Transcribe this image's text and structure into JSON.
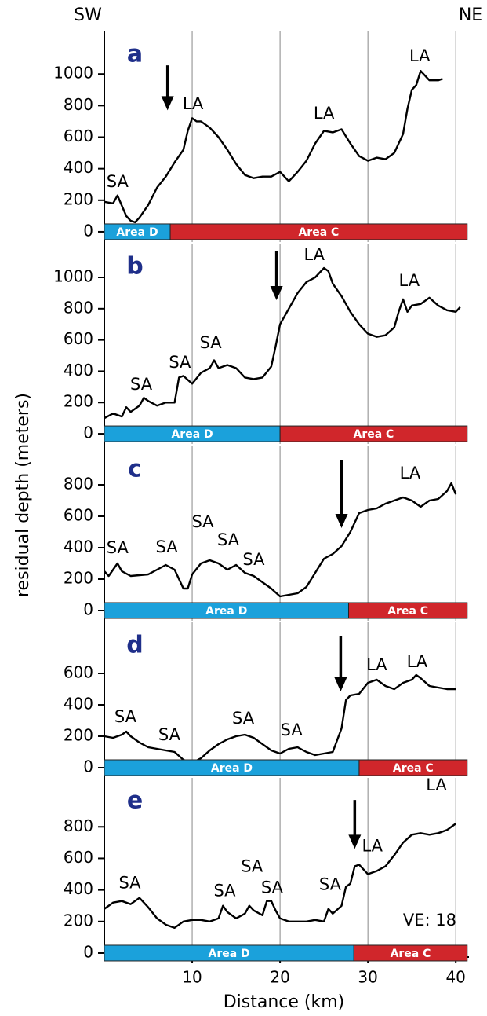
{
  "corner_labels": {
    "left": "SW",
    "right": "NE"
  },
  "ylabel": "residual depth (meters)",
  "x_axis": {
    "label": "Distance (km)",
    "xlim": [
      0,
      41.5
    ],
    "xticks": [
      10,
      20,
      30,
      40
    ]
  },
  "chart_data": [
    {
      "type": "line",
      "title": "a",
      "color": "#000000",
      "ylim": [
        -65,
        1270
      ],
      "yticks": [
        0,
        200,
        400,
        600,
        800,
        1000
      ],
      "x": [
        0,
        1,
        1.5,
        2.5,
        3,
        3.5,
        4,
        5,
        6,
        7,
        8,
        9,
        9.5,
        10,
        10.5,
        11,
        12,
        13,
        14,
        15,
        16,
        17,
        18,
        19,
        20,
        21,
        22,
        23,
        24,
        25,
        26,
        27,
        28,
        29,
        30,
        31,
        32,
        33,
        34,
        34.5,
        35,
        35.5,
        36,
        36.5,
        37,
        38,
        38.5
      ],
      "values": [
        190,
        180,
        230,
        100,
        70,
        60,
        90,
        170,
        280,
        350,
        440,
        520,
        640,
        720,
        700,
        700,
        660,
        600,
        520,
        430,
        360,
        340,
        350,
        350,
        380,
        320,
        380,
        450,
        560,
        640,
        630,
        650,
        560,
        480,
        450,
        470,
        460,
        500,
        620,
        780,
        900,
        930,
        1020,
        990,
        960,
        960,
        970
      ],
      "annotations": [
        {
          "text": "SA",
          "x": 1.5,
          "y": 313
        },
        {
          "text": "LA",
          "x": 10.1,
          "y": 806
        },
        {
          "text": "LA",
          "x": 25,
          "y": 746
        },
        {
          "text": "LA",
          "x": 35.9,
          "y": 1110
        }
      ],
      "arrow": {
        "x": 7.2,
        "y_from": 1055,
        "y_to": 770
      },
      "regions": [
        {
          "label": "Area D",
          "range": [
            0,
            7.5
          ],
          "color": "#1ba1db"
        },
        {
          "label": "Area C",
          "range": [
            7.5,
            41.3
          ],
          "color": "#d0262b"
        }
      ]
    },
    {
      "type": "line",
      "title": "b",
      "color": "#000000",
      "ylim": [
        -65,
        1216
      ],
      "yticks": [
        0,
        200,
        400,
        600,
        800,
        1000
      ],
      "x": [
        0,
        1,
        2,
        2.5,
        3,
        4,
        4.5,
        5,
        6,
        7,
        8,
        8.5,
        9,
        10,
        11,
        12,
        12.5,
        13,
        14,
        15,
        16,
        17,
        18,
        19,
        19.5,
        20,
        21,
        22,
        23,
        24,
        25,
        25.5,
        26,
        27,
        28,
        29,
        30,
        31,
        32,
        33,
        33.5,
        34,
        34.5,
        35,
        36,
        37,
        38,
        39,
        40,
        40.5
      ],
      "values": [
        100,
        130,
        110,
        170,
        140,
        180,
        230,
        210,
        180,
        200,
        200,
        360,
        370,
        320,
        390,
        420,
        470,
        420,
        440,
        420,
        360,
        350,
        360,
        430,
        560,
        700,
        800,
        900,
        970,
        1000,
        1060,
        1040,
        960,
        880,
        780,
        700,
        640,
        620,
        630,
        680,
        780,
        860,
        780,
        820,
        830,
        870,
        820,
        790,
        780,
        810
      ],
      "annotations": [
        {
          "text": "SA",
          "x": 4.2,
          "y": 311
        },
        {
          "text": "SA",
          "x": 8.6,
          "y": 452
        },
        {
          "text": "SA",
          "x": 12.1,
          "y": 578
        },
        {
          "text": "LA",
          "x": 23.9,
          "y": 1140
        },
        {
          "text": "LA",
          "x": 34.7,
          "y": 975
        }
      ],
      "arrow": {
        "x": 19.6,
        "y_from": 1166,
        "y_to": 854
      },
      "regions": [
        {
          "label": "Area D",
          "range": [
            0,
            20
          ],
          "color": "#1ba1db"
        },
        {
          "label": "Area C",
          "range": [
            20,
            41.3
          ],
          "color": "#d0262b"
        }
      ]
    },
    {
      "type": "line",
      "title": "c",
      "color": "#000000",
      "ylim": [
        -65,
        1045
      ],
      "yticks": [
        0,
        200,
        400,
        600,
        800
      ],
      "x": [
        0,
        0.5,
        1,
        1.5,
        2,
        3,
        5,
        6,
        7,
        8,
        9,
        9.5,
        10,
        11,
        12,
        13,
        14,
        15,
        16,
        17,
        18,
        19,
        20,
        21,
        22,
        23,
        24,
        25,
        26,
        27,
        28,
        29,
        30,
        31,
        32,
        33,
        34,
        35,
        36,
        37,
        38,
        39,
        39.5,
        40
      ],
      "values": [
        250,
        220,
        260,
        300,
        250,
        220,
        230,
        260,
        290,
        260,
        140,
        140,
        230,
        300,
        320,
        300,
        260,
        290,
        240,
        220,
        180,
        140,
        90,
        100,
        110,
        150,
        240,
        330,
        360,
        410,
        500,
        620,
        640,
        650,
        680,
        700,
        720,
        700,
        660,
        700,
        710,
        760,
        810,
        740
      ],
      "annotations": [
        {
          "text": "SA",
          "x": 1.5,
          "y": 395
        },
        {
          "text": "SA",
          "x": 7.1,
          "y": 400
        },
        {
          "text": "SA",
          "x": 11.2,
          "y": 560
        },
        {
          "text": "SA",
          "x": 14.1,
          "y": 445
        },
        {
          "text": "SA",
          "x": 17,
          "y": 320
        },
        {
          "text": "LA",
          "x": 34.8,
          "y": 870
        }
      ],
      "arrow": {
        "x": 27,
        "y_from": 960,
        "y_to": 525
      },
      "regions": [
        {
          "label": "Area D",
          "range": [
            0,
            27.8
          ],
          "color": "#1ba1db"
        },
        {
          "label": "Area C",
          "range": [
            27.8,
            41.3
          ],
          "color": "#d0262b"
        }
      ]
    },
    {
      "type": "line",
      "title": "d",
      "color": "#000000",
      "ylim": [
        -55,
        925
      ],
      "yticks": [
        0,
        200,
        400,
        600
      ],
      "x": [
        0,
        1,
        2,
        2.5,
        3,
        4,
        5,
        6,
        7,
        8,
        9,
        10,
        11,
        12,
        13,
        14,
        15,
        16,
        17,
        18,
        19,
        20,
        21,
        22,
        23,
        24,
        25,
        26,
        27,
        27.5,
        28,
        29,
        30,
        31,
        32,
        33,
        34,
        35,
        35.5,
        36,
        37,
        38,
        39,
        40
      ],
      "values": [
        200,
        190,
        210,
        230,
        200,
        160,
        130,
        120,
        110,
        100,
        50,
        30,
        60,
        110,
        150,
        180,
        200,
        210,
        190,
        150,
        110,
        90,
        120,
        130,
        100,
        80,
        90,
        100,
        250,
        430,
        460,
        470,
        540,
        560,
        520,
        500,
        540,
        560,
        590,
        570,
        520,
        510,
        500,
        500
      ],
      "annotations": [
        {
          "text": "SA",
          "x": 2.4,
          "y": 320
        },
        {
          "text": "SA",
          "x": 7.4,
          "y": 205
        },
        {
          "text": "SA",
          "x": 15.8,
          "y": 310
        },
        {
          "text": "SA",
          "x": 21.3,
          "y": 235
        },
        {
          "text": "LA",
          "x": 31,
          "y": 650
        },
        {
          "text": "LA",
          "x": 35.6,
          "y": 670
        }
      ],
      "arrow": {
        "x": 26.9,
        "y_from": 835,
        "y_to": 485
      },
      "regions": [
        {
          "label": "Area D",
          "range": [
            0,
            29
          ],
          "color": "#1ba1db"
        },
        {
          "label": "Area C",
          "range": [
            29,
            41.3
          ],
          "color": "#d0262b"
        }
      ]
    },
    {
      "type": "line",
      "title": "e",
      "color": "#000000",
      "ylim": [
        -25,
        1110
      ],
      "yticks": [
        0,
        200,
        400,
        600,
        800
      ],
      "note": "VE: 18",
      "x": [
        0,
        0.5,
        1,
        2,
        3,
        4,
        5,
        6,
        7,
        8,
        9,
        10,
        11,
        12,
        13,
        13.5,
        14,
        15,
        16,
        16.5,
        17,
        18,
        18.5,
        19,
        19.5,
        20,
        21,
        22,
        23,
        24,
        25,
        25.5,
        26,
        27,
        27.5,
        28,
        28.5,
        29,
        30,
        31,
        32,
        33,
        34,
        35,
        36,
        37,
        38,
        39,
        39.5,
        40
      ],
      "values": [
        280,
        300,
        320,
        330,
        310,
        350,
        290,
        220,
        180,
        160,
        200,
        210,
        210,
        200,
        220,
        300,
        260,
        220,
        250,
        300,
        270,
        240,
        330,
        330,
        270,
        220,
        200,
        200,
        200,
        210,
        200,
        280,
        250,
        300,
        420,
        440,
        550,
        560,
        500,
        520,
        550,
        620,
        700,
        750,
        760,
        750,
        760,
        780,
        800,
        820
      ],
      "annotations": [
        {
          "text": "SA",
          "x": 2.9,
          "y": 440
        },
        {
          "text": "SA",
          "x": 13.7,
          "y": 390
        },
        {
          "text": "SA",
          "x": 16.8,
          "y": 545
        },
        {
          "text": "SA",
          "x": 19.1,
          "y": 410
        },
        {
          "text": "SA",
          "x": 25.7,
          "y": 430
        },
        {
          "text": "LA",
          "x": 30.5,
          "y": 675
        },
        {
          "text": "LA",
          "x": 37.8,
          "y": 1060
        }
      ],
      "arrow": {
        "x": 28.5,
        "y_from": 970,
        "y_to": 660
      },
      "regions": [
        {
          "label": "Area D",
          "range": [
            0,
            28.4
          ],
          "color": "#1ba1db"
        },
        {
          "label": "Area C",
          "range": [
            28.4,
            41.3
          ],
          "color": "#d0262b"
        }
      ]
    }
  ]
}
